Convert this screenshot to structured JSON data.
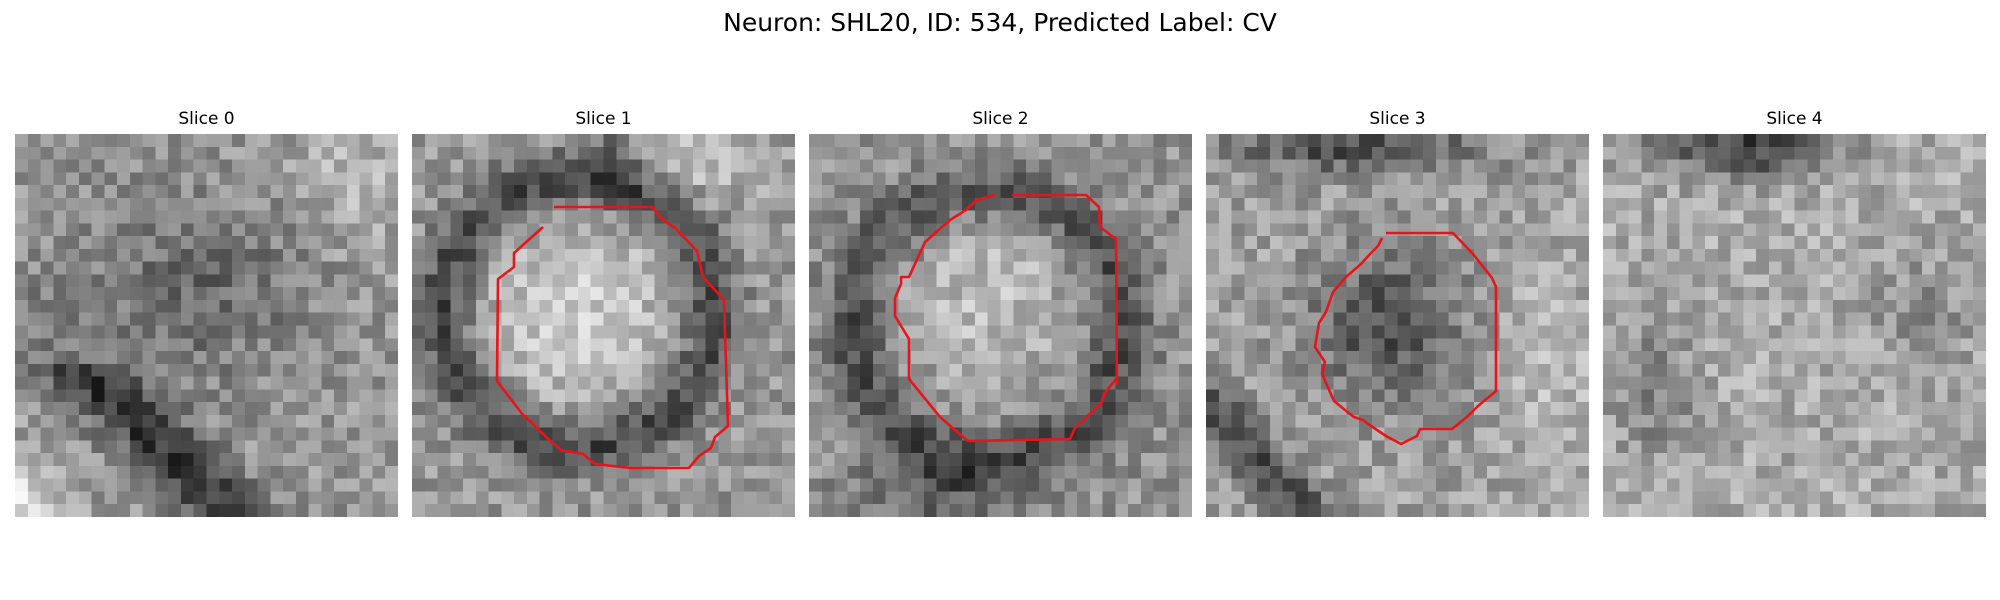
{
  "figure": {
    "title": "Neuron: SHL20, ID: 534, Predicted Label: CV"
  },
  "slices": [
    {
      "label": "Slice 0",
      "has_contour": false
    },
    {
      "label": "Slice 1",
      "has_contour": true
    },
    {
      "label": "Slice 2",
      "has_contour": true
    },
    {
      "label": "Slice 3",
      "has_contour": true
    },
    {
      "label": "Slice 4",
      "has_contour": false
    }
  ],
  "colors": {
    "contour": "#e8141b",
    "colormap": "gray"
  }
}
